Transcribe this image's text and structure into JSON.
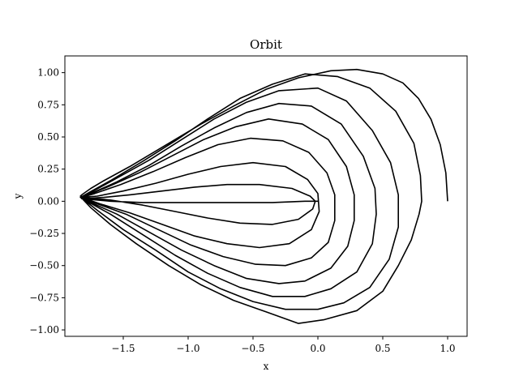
{
  "chart_data": {
    "type": "line",
    "title": "Orbit",
    "xlabel": "x",
    "ylabel": "y",
    "xlim": [
      -1.95,
      1.15
    ],
    "ylim": [
      -1.05,
      1.13
    ],
    "xticks": [
      -1.5,
      -1.0,
      -0.5,
      0.0,
      0.5,
      1.0
    ],
    "xtick_labels": [
      "−1.5",
      "−1.0",
      "−0.5",
      "0.0",
      "0.5",
      "1.0"
    ],
    "yticks": [
      -1.0,
      -0.75,
      -0.5,
      -0.25,
      0.0,
      0.25,
      0.5,
      0.75,
      1.0
    ],
    "ytick_labels": [
      "−1.00",
      "−0.75",
      "−0.50",
      "−0.25",
      "0.00",
      "0.25",
      "0.50",
      "0.75",
      "1.00"
    ],
    "grid": false,
    "line_color": "#000000",
    "series": [
      {
        "points": [
          [
            1.0,
            0.0
          ],
          [
            0.986,
            0.22
          ],
          [
            0.943,
            0.44
          ],
          [
            0.872,
            0.637
          ],
          [
            0.775,
            0.8
          ],
          [
            0.655,
            0.92
          ],
          [
            0.5,
            0.99
          ],
          [
            0.3,
            1.025
          ],
          [
            0.1,
            1.015
          ],
          [
            -0.15,
            0.96
          ],
          [
            -0.4,
            0.87
          ],
          [
            -0.65,
            0.74
          ],
          [
            -0.9,
            0.6
          ],
          [
            -1.2,
            0.42
          ],
          [
            -1.45,
            0.27
          ],
          [
            -1.65,
            0.16
          ],
          [
            -1.75,
            0.1
          ],
          [
            -1.82,
            0.05
          ],
          [
            -1.83,
            0.04
          ],
          [
            -1.82,
            0.025
          ],
          [
            -1.75,
            -0.05
          ],
          [
            -1.6,
            -0.18
          ],
          [
            -1.4,
            -0.33
          ],
          [
            -1.15,
            -0.5
          ],
          [
            -0.9,
            -0.65
          ],
          [
            -0.65,
            -0.77
          ],
          [
            -0.4,
            -0.86
          ],
          [
            -0.15,
            -0.95
          ],
          [
            0.05,
            -0.92
          ],
          [
            0.3,
            -0.85
          ],
          [
            0.5,
            -0.7
          ],
          [
            0.62,
            -0.5
          ],
          [
            0.72,
            -0.3
          ],
          [
            0.78,
            -0.1
          ],
          [
            0.8,
            0.0
          ],
          [
            0.79,
            0.2
          ],
          [
            0.74,
            0.45
          ],
          [
            0.6,
            0.7
          ],
          [
            0.4,
            0.88
          ],
          [
            0.15,
            0.97
          ],
          [
            -0.1,
            0.99
          ],
          [
            -0.35,
            0.91
          ],
          [
            -0.6,
            0.8
          ],
          [
            -0.85,
            0.64
          ],
          [
            -1.1,
            0.47
          ],
          [
            -1.35,
            0.31
          ],
          [
            -1.6,
            0.16
          ],
          [
            -1.76,
            0.07
          ],
          [
            -1.83,
            0.03
          ],
          [
            -1.8,
            0.01
          ],
          [
            -1.7,
            -0.07
          ],
          [
            -1.5,
            -0.22
          ],
          [
            -1.25,
            -0.38
          ],
          [
            -1.0,
            -0.55
          ],
          [
            -0.75,
            -0.68
          ],
          [
            -0.5,
            -0.78
          ],
          [
            -0.25,
            -0.84
          ],
          [
            0.0,
            -0.84
          ],
          [
            0.2,
            -0.79
          ],
          [
            0.4,
            -0.67
          ],
          [
            0.55,
            -0.45
          ],
          [
            0.62,
            -0.2
          ],
          [
            0.62,
            0.05
          ],
          [
            0.56,
            0.3
          ],
          [
            0.42,
            0.55
          ],
          [
            0.22,
            0.78
          ],
          [
            0.0,
            0.88
          ],
          [
            -0.3,
            0.86
          ],
          [
            -0.55,
            0.77
          ],
          [
            -0.8,
            0.64
          ],
          [
            -1.05,
            0.48
          ],
          [
            -1.3,
            0.32
          ],
          [
            -1.55,
            0.18
          ],
          [
            -1.73,
            0.08
          ],
          [
            -1.82,
            0.03
          ],
          [
            -1.78,
            0.0
          ],
          [
            -1.6,
            -0.1
          ],
          [
            -1.35,
            -0.26
          ],
          [
            -1.1,
            -0.42
          ],
          [
            -0.85,
            -0.56
          ],
          [
            -0.6,
            -0.67
          ],
          [
            -0.35,
            -0.74
          ],
          [
            -0.1,
            -0.74
          ],
          [
            0.1,
            -0.68
          ],
          [
            0.3,
            -0.55
          ],
          [
            0.42,
            -0.33
          ],
          [
            0.45,
            -0.1
          ],
          [
            0.44,
            0.1
          ],
          [
            0.35,
            0.35
          ],
          [
            0.18,
            0.6
          ],
          [
            -0.05,
            0.74
          ],
          [
            -0.3,
            0.76
          ],
          [
            -0.55,
            0.69
          ],
          [
            -0.8,
            0.57
          ],
          [
            -1.05,
            0.43
          ],
          [
            -1.3,
            0.28
          ],
          [
            -1.55,
            0.15
          ],
          [
            -1.75,
            0.06
          ],
          [
            -1.82,
            0.03
          ],
          [
            -1.75,
            -0.01
          ],
          [
            -1.55,
            -0.1
          ],
          [
            -1.3,
            -0.24
          ],
          [
            -1.05,
            -0.38
          ],
          [
            -0.8,
            -0.5
          ],
          [
            -0.55,
            -0.6
          ],
          [
            -0.3,
            -0.64
          ],
          [
            -0.1,
            -0.62
          ],
          [
            0.1,
            -0.52
          ],
          [
            0.23,
            -0.35
          ],
          [
            0.28,
            -0.15
          ],
          [
            0.28,
            0.05
          ],
          [
            0.22,
            0.27
          ],
          [
            0.08,
            0.48
          ],
          [
            -0.12,
            0.6
          ],
          [
            -0.38,
            0.64
          ],
          [
            -0.63,
            0.58
          ],
          [
            -0.88,
            0.48
          ],
          [
            -1.13,
            0.35
          ],
          [
            -1.38,
            0.22
          ],
          [
            -1.6,
            0.12
          ],
          [
            -1.77,
            0.05
          ],
          [
            -1.82,
            0.03
          ],
          [
            -1.7,
            -0.02
          ],
          [
            -1.48,
            -0.1
          ],
          [
            -1.23,
            -0.22
          ],
          [
            -0.98,
            -0.34
          ],
          [
            -0.73,
            -0.43
          ],
          [
            -0.48,
            -0.49
          ],
          [
            -0.25,
            -0.5
          ],
          [
            -0.05,
            -0.44
          ],
          [
            0.08,
            -0.32
          ],
          [
            0.13,
            -0.15
          ],
          [
            0.13,
            0.05
          ],
          [
            0.07,
            0.22
          ],
          [
            -0.07,
            0.38
          ],
          [
            -0.27,
            0.47
          ],
          [
            -0.52,
            0.49
          ],
          [
            -0.77,
            0.44
          ],
          [
            -1.02,
            0.34
          ],
          [
            -1.27,
            0.23
          ],
          [
            -1.52,
            0.13
          ],
          [
            -1.72,
            0.06
          ],
          [
            -1.82,
            0.03
          ],
          [
            -1.68,
            -0.02
          ],
          [
            -1.45,
            -0.09
          ],
          [
            -1.2,
            -0.18
          ],
          [
            -0.95,
            -0.27
          ],
          [
            -0.7,
            -0.33
          ],
          [
            -0.45,
            -0.36
          ],
          [
            -0.22,
            -0.33
          ],
          [
            -0.05,
            -0.22
          ],
          [
            0.01,
            -0.08
          ],
          [
            0.0,
            0.06
          ],
          [
            -0.08,
            0.17
          ],
          [
            -0.25,
            0.27
          ],
          [
            -0.5,
            0.3
          ],
          [
            -0.75,
            0.27
          ],
          [
            -1.0,
            0.21
          ],
          [
            -1.25,
            0.14
          ],
          [
            -1.5,
            0.08
          ],
          [
            -1.7,
            0.04
          ],
          [
            -1.82,
            0.03
          ],
          [
            -1.6,
            0.01
          ],
          [
            -1.35,
            -0.03
          ],
          [
            -1.1,
            -0.08
          ],
          [
            -0.85,
            -0.13
          ],
          [
            -0.6,
            -0.17
          ],
          [
            -0.35,
            -0.18
          ],
          [
            -0.15,
            -0.14
          ],
          [
            -0.04,
            -0.06
          ],
          [
            -0.02,
            0.0
          ],
          [
            -0.06,
            0.04
          ],
          [
            -0.2,
            0.1
          ],
          [
            -0.45,
            0.13
          ],
          [
            -0.7,
            0.13
          ],
          [
            -0.95,
            0.11
          ],
          [
            -1.2,
            0.08
          ],
          [
            -1.45,
            0.05
          ],
          [
            -1.65,
            0.03
          ],
          [
            -1.82,
            0.02
          ],
          [
            -1.6,
            0.0
          ],
          [
            -1.35,
            -0.01
          ],
          [
            -1.1,
            -0.01
          ],
          [
            -0.85,
            -0.01
          ],
          [
            -0.6,
            -0.01
          ],
          [
            -0.35,
            -0.01
          ],
          [
            -0.1,
            0.0
          ],
          [
            0.0,
            0.0
          ]
        ]
      }
    ]
  }
}
